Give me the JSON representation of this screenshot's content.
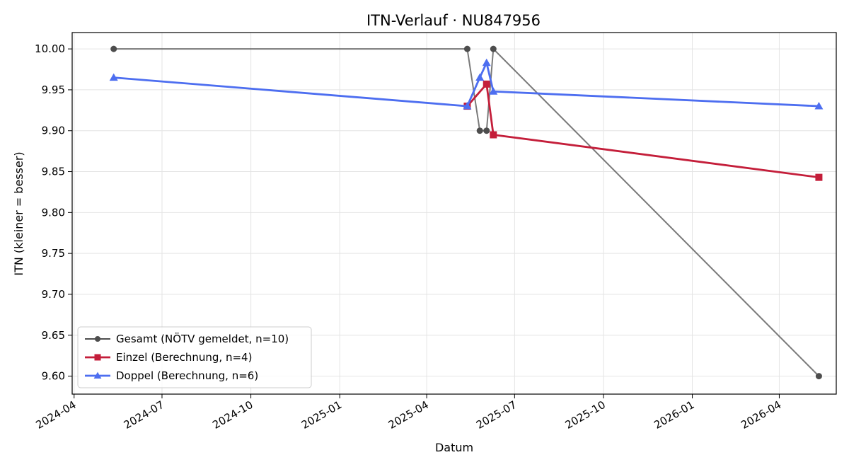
{
  "chart_data": {
    "type": "line",
    "title": "ITN-Verlauf · NU847956",
    "xlabel": "Datum",
    "ylabel": "ITN  (kleiner = besser)",
    "ylim": [
      9.578,
      10.02
    ],
    "xlim": [
      "2024-03-30",
      "2026-05-30"
    ],
    "x_ticks": [
      "2024-04",
      "2024-07",
      "2024-10",
      "2025-01",
      "2025-04",
      "2025-07",
      "2025-10",
      "2026-01",
      "2026-04"
    ],
    "y_ticks": [
      9.6,
      9.65,
      9.7,
      9.75,
      9.8,
      9.85,
      9.9,
      9.95,
      10.0
    ],
    "y_tick_labels": [
      "9.60",
      "9.65",
      "9.70",
      "9.75",
      "9.80",
      "9.85",
      "9.90",
      "9.95",
      "10.00"
    ],
    "grid": true,
    "legend_position": "lower-left",
    "series": [
      {
        "name": "Gesamt (NÖTV gemeldet, n=10)",
        "color": "#4d4d4d",
        "marker": "circle",
        "points": [
          {
            "x": "2024-05-12",
            "y": 10.0
          },
          {
            "x": "2025-05-13",
            "y": 10.0
          },
          {
            "x": "2025-05-26",
            "y": 9.9
          },
          {
            "x": "2025-06-02",
            "y": 9.9
          },
          {
            "x": "2025-06-09",
            "y": 10.0
          },
          {
            "x": "2026-05-12",
            "y": 9.6
          }
        ]
      },
      {
        "name": "Einzel (Berechnung, n=4)",
        "color": "#c41e3a",
        "marker": "square",
        "points": [
          {
            "x": "2025-05-13",
            "y": 9.93
          },
          {
            "x": "2025-06-02",
            "y": 9.957
          },
          {
            "x": "2025-06-09",
            "y": 9.895
          },
          {
            "x": "2026-05-12",
            "y": 9.843
          }
        ]
      },
      {
        "name": "Doppel (Berechnung, n=6)",
        "color": "#4d6ef0",
        "marker": "triangle",
        "points": [
          {
            "x": "2024-05-12",
            "y": 9.965
          },
          {
            "x": "2025-05-13",
            "y": 9.93
          },
          {
            "x": "2025-05-26",
            "y": 9.965
          },
          {
            "x": "2025-06-02",
            "y": 9.983
          },
          {
            "x": "2025-06-09",
            "y": 9.948
          },
          {
            "x": "2026-05-12",
            "y": 9.93
          }
        ]
      }
    ]
  }
}
